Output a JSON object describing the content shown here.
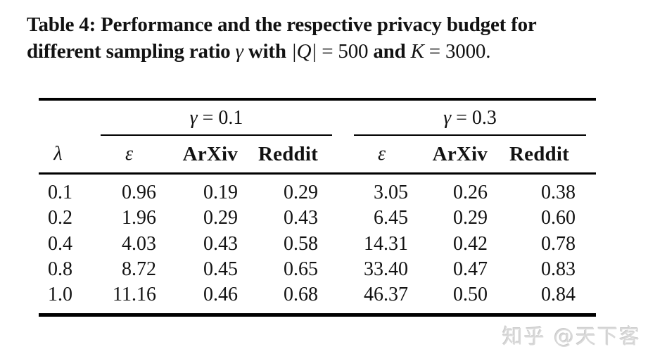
{
  "caption": {
    "line1": "Table 4: Performance and the respective privacy budget for",
    "line2": {
      "p0": "different sampling ratio ",
      "p1": "γ",
      "p2": " with ",
      "p3": "|Q|",
      "p4": " = 500 ",
      "p5": "and ",
      "p6": "K",
      "p7": " = 3000."
    }
  },
  "table": {
    "groups": [
      {
        "sym": "γ",
        "eq": " = 0.1"
      },
      {
        "sym": "γ",
        "eq": " = 0.3"
      }
    ],
    "col_headers": [
      "λ",
      "ε",
      "ArXiv",
      "Reddit",
      "ε",
      "ArXiv",
      "Reddit"
    ],
    "rows": [
      [
        "0.1",
        "0.96",
        "0.19",
        "0.29",
        "3.05",
        "0.26",
        "0.38"
      ],
      [
        "0.2",
        "1.96",
        "0.29",
        "0.43",
        "6.45",
        "0.29",
        "0.60"
      ],
      [
        "0.4",
        "4.03",
        "0.43",
        "0.58",
        "14.31",
        "0.42",
        "0.78"
      ],
      [
        "0.8",
        "8.72",
        "0.45",
        "0.65",
        "33.40",
        "0.47",
        "0.83"
      ],
      [
        "1.0",
        "11.16",
        "0.46",
        "0.68",
        "46.37",
        "0.50",
        "0.84"
      ]
    ]
  },
  "watermark": {
    "text": "知乎 @天下客"
  },
  "colors": {
    "text": "#121212",
    "rule": "#000000",
    "watermark": "#d9d9d9",
    "background": "#ffffff"
  }
}
